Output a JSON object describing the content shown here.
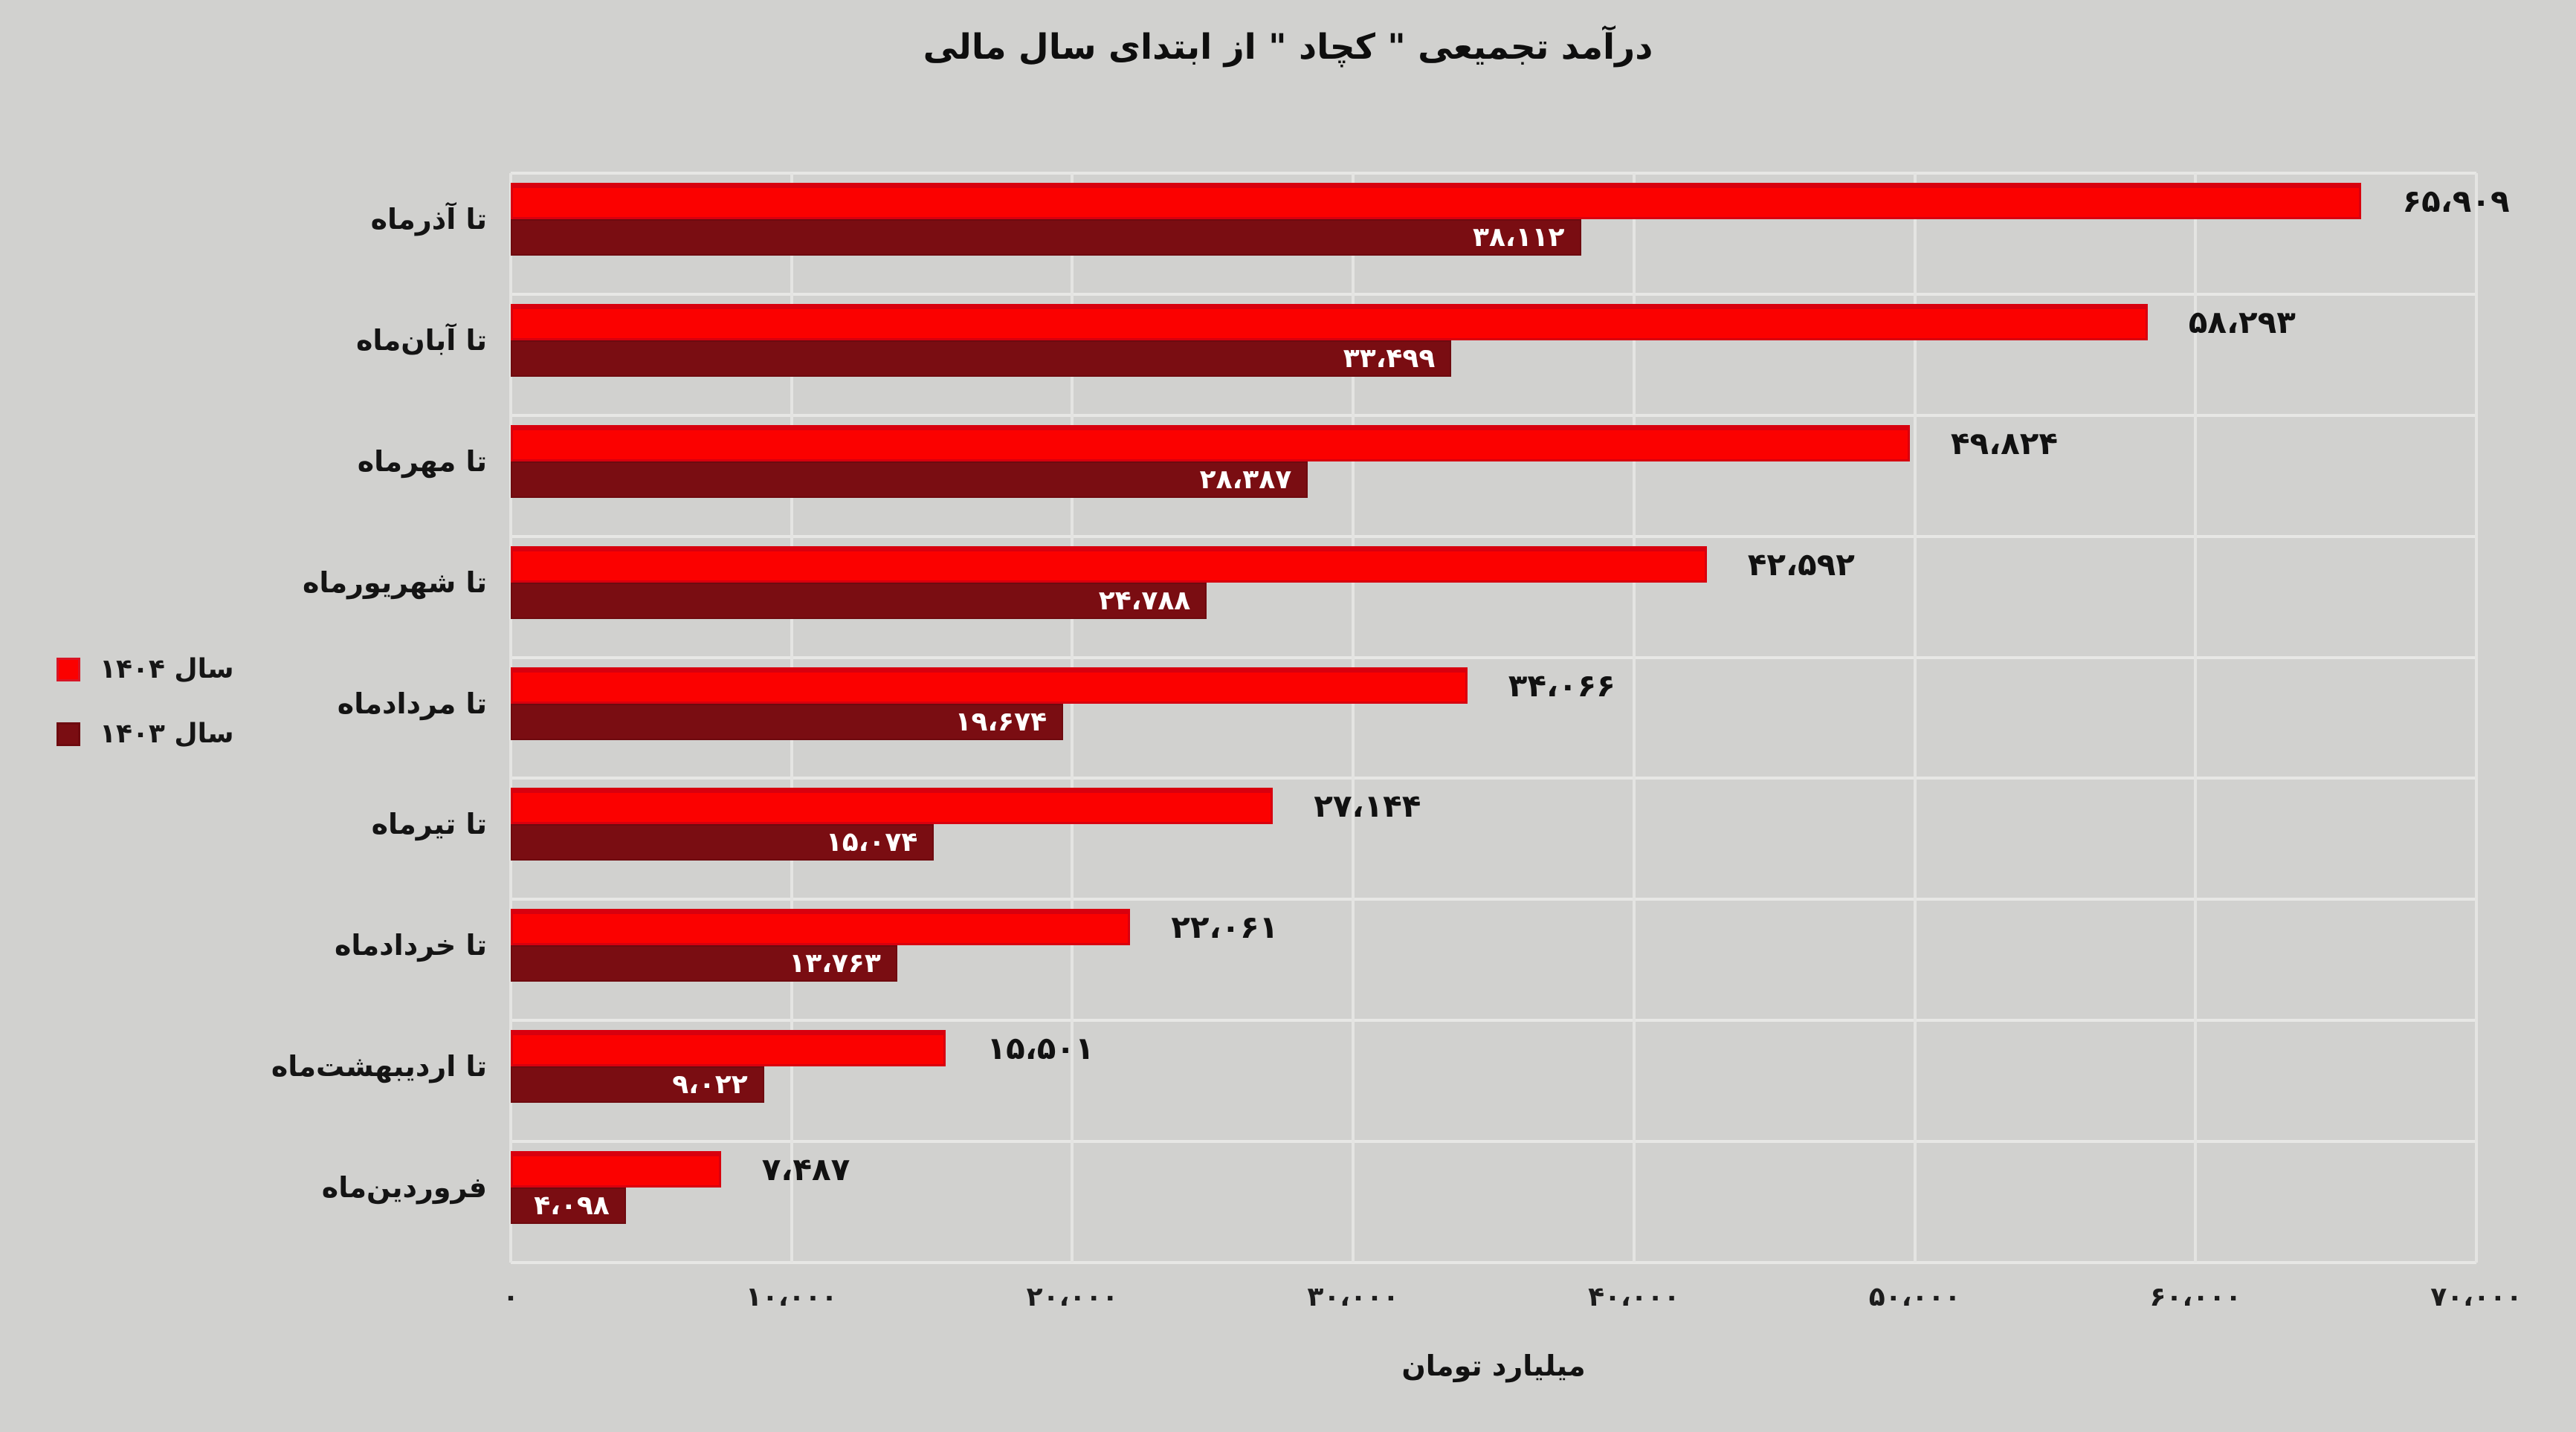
{
  "title": "درآمد تجمیعی \" کچاد \" از ابتدای سال مالی",
  "legend": {
    "items": [
      {
        "label": "سال ۱۴۰۴",
        "color": "#fb0100"
      },
      {
        "label": "سال ۱۴۰۳",
        "color": "#7a0d12"
      }
    ]
  },
  "colors": {
    "background": "#d1d1cf",
    "gridline": "#e4e4e2",
    "series_1404": "#fb0100",
    "series_1404_border": "#d8000e",
    "series_1403": "#7a0d12",
    "value_text_outside": "#111111",
    "value_text_inside": "#ffffff"
  },
  "chart_data": {
    "type": "bar",
    "orientation": "horizontal",
    "title": "درآمد تجمیعی \" کچاد \" از ابتدای سال مالی",
    "xlabel": "میلیارد تومان",
    "xlim": [
      0,
      70000
    ],
    "xticks": [
      0,
      10000,
      20000,
      30000,
      40000,
      50000,
      60000,
      70000
    ],
    "xtick_labels": [
      "۰",
      "۱۰،۰۰۰",
      "۲۰،۰۰۰",
      "۳۰،۰۰۰",
      "۴۰،۰۰۰",
      "۵۰،۰۰۰",
      "۶۰،۰۰۰",
      "۷۰،۰۰۰"
    ],
    "grid": "on",
    "legend_position": "left",
    "categories": [
      "تا آذرماه",
      "تا آبان‌ماه",
      "تا مهرماه",
      "تا شهریورماه",
      "تا مردادماه",
      "تا تیرماه",
      "تا خردادماه",
      "تا اردیبهشت‌ماه",
      "فروردین‌ماه"
    ],
    "series": [
      {
        "name": "سال ۱۴۰۴",
        "color": "#fb0100",
        "values": [
          65909,
          58293,
          49824,
          42592,
          34066,
          27144,
          22061,
          15501,
          7487
        ],
        "labels": [
          "۶۵،۹۰۹",
          "۵۸،۲۹۳",
          "۴۹،۸۲۴",
          "۴۲،۵۹۲",
          "۳۴،۰۶۶",
          "۲۷،۱۴۴",
          "۲۲،۰۶۱",
          "۱۵،۵۰۱",
          "۷،۴۸۷"
        ],
        "label_placement": "outside-end"
      },
      {
        "name": "سال ۱۴۰۳",
        "color": "#7a0d12",
        "values": [
          38112,
          33499,
          28387,
          24788,
          19674,
          15074,
          13763,
          9022,
          4098
        ],
        "labels": [
          "۳۸،۱۱۲",
          "۳۳،۴۹۹",
          "۲۸،۳۸۷",
          "۲۴،۷۸۸",
          "۱۹،۶۷۴",
          "۱۵،۰۷۴",
          "۱۳،۷۶۳",
          "۹،۰۲۲",
          "۴،۰۹۸"
        ],
        "label_placement": "inside-end"
      }
    ]
  }
}
